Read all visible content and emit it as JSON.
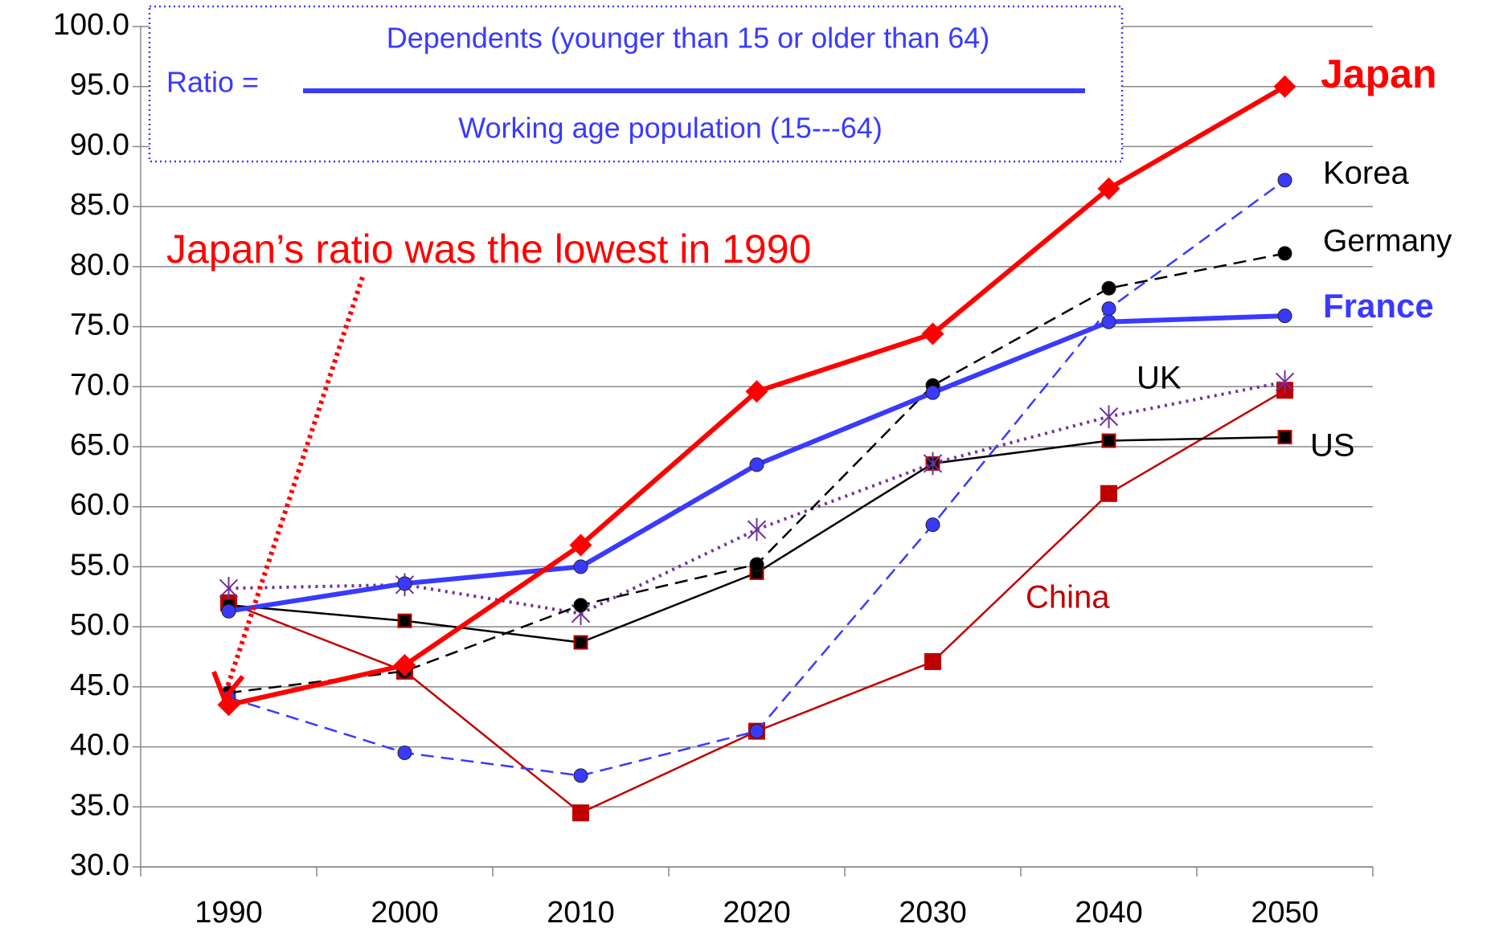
{
  "chart_data": {
    "type": "line",
    "categories": [
      "1990",
      "2000",
      "2010",
      "2020",
      "2030",
      "2040",
      "2050"
    ],
    "ylim": [
      30,
      100
    ],
    "yticks": [
      {
        "value": 30,
        "label": "30.0"
      },
      {
        "value": 35,
        "label": "35.0"
      },
      {
        "value": 40,
        "label": "40.0"
      },
      {
        "value": 45,
        "label": "45.0"
      },
      {
        "value": 50,
        "label": "50.0"
      },
      {
        "value": 55,
        "label": "55.0"
      },
      {
        "value": 60,
        "label": "60.0"
      },
      {
        "value": 65,
        "label": "65.0"
      },
      {
        "value": 70,
        "label": "70.0"
      },
      {
        "value": 75,
        "label": "75.0"
      },
      {
        "value": 80,
        "label": "80.0"
      },
      {
        "value": 85,
        "label": "85.0"
      },
      {
        "value": 90,
        "label": "90.0"
      },
      {
        "value": 95,
        "label": "95.0"
      },
      {
        "value": 100,
        "label": "100.0"
      }
    ],
    "grid": true,
    "formula": {
      "left": "Ratio =",
      "numerator": "Dependents (younger than 15 or older than 64)",
      "denominator": "Working age population (15---64)"
    },
    "annotation": "Japan’s ratio was the lowest in 1990",
    "series": [
      {
        "name": "China",
        "color": "#c00000",
        "line_style": "solid",
        "marker": "square",
        "values": [
          52.0,
          46.3,
          34.5,
          41.3,
          47.1,
          61.1,
          69.7
        ]
      },
      {
        "name": "US",
        "color": "#000000",
        "line_style": "solid",
        "marker": "square",
        "values": [
          51.8,
          50.5,
          48.7,
          54.5,
          63.6,
          65.5,
          65.8
        ]
      },
      {
        "name": "UK",
        "color": "#7030a0",
        "line_style": "dotted",
        "marker": "star",
        "values": [
          53.2,
          53.5,
          51.1,
          58.1,
          63.6,
          67.5,
          70.4
        ]
      },
      {
        "name": "Germany",
        "color": "#000000",
        "line_style": "dashed",
        "marker": "circle",
        "values": [
          44.5,
          46.3,
          51.8,
          55.2,
          70.1,
          78.2,
          81.1
        ]
      },
      {
        "name": "Korea",
        "color": "#3a3aff",
        "line_style": "dashed",
        "marker": "circle",
        "values": [
          44.1,
          39.5,
          37.6,
          41.3,
          58.5,
          76.5,
          87.2
        ]
      },
      {
        "name": "France",
        "color": "#3a3aff",
        "line_style": "thick",
        "marker": "circle",
        "values": [
          51.3,
          53.6,
          55.0,
          63.5,
          69.5,
          75.4,
          75.9
        ]
      },
      {
        "name": "Japan",
        "color": "#ff0000",
        "line_style": "thick",
        "marker": "diamond",
        "values": [
          43.5,
          46.8,
          56.8,
          69.6,
          74.4,
          86.5,
          95.0
        ]
      }
    ]
  }
}
